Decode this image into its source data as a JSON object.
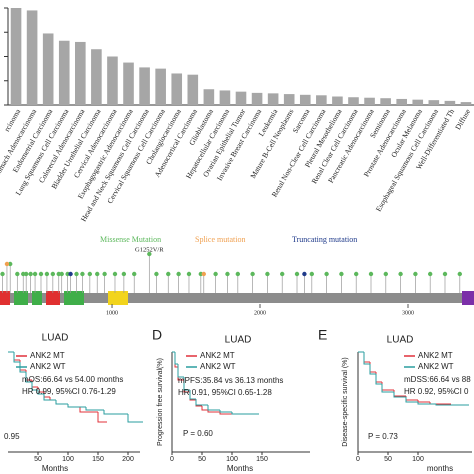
{
  "chart_data": [
    {
      "type": "bar",
      "color": "#a6a6a6",
      "categories": [
        "rcinoma",
        "Stomach Adenocarcinoma",
        "Endometrial Carcinoma",
        "Lung Squamous Cell Carcinoma",
        "Colorectal Adenocarcinoma",
        "Bladder Urothelial Carcinoma",
        "Cervical Adenocarcinoma",
        "Esophagogastric Adenocarcinoma",
        "Head and Neck Squamous Cell Carcinoma",
        "Cervical Squamous Cell Carcinoma",
        "Cholangiocarcinoma",
        "Adenocortical Carcinoma",
        "Glioblastoma",
        "Hepatocellular Carcinoma",
        "Ovarian Epithelial Tumor",
        "Invasive Breast Carcinoma",
        "Leukemia",
        "Mature B-Cell Neoplasms",
        "Sarcoma",
        "Renal Non-Clear Cell Carcinoma",
        "Pleural Mesothelioma",
        "Renal Clear Cell Carcinoma",
        "Pancreatic Adenocarcinoma",
        "Seminoma",
        "Prostate Adenocarcinoma",
        "Ocular Melanoma",
        "Esophageal Squamous Cell Carcinoma",
        "Well-Differentiated Th",
        "Diffuse"
      ],
      "values": [
        4.0,
        3.9,
        2.95,
        2.65,
        2.6,
        2.3,
        2.0,
        1.75,
        1.55,
        1.5,
        1.3,
        1.25,
        0.65,
        0.6,
        0.55,
        0.5,
        0.48,
        0.45,
        0.42,
        0.4,
        0.35,
        0.32,
        0.3,
        0.28,
        0.25,
        0.22,
        0.2,
        0.17,
        0.12
      ],
      "ylim": [
        0,
        4
      ],
      "yticks": [
        0,
        1,
        2,
        3,
        4
      ]
    },
    {
      "type": "lollipop",
      "annotation": "G1252V/R",
      "xlim": [
        243,
        3446
      ],
      "xticks": [
        1000,
        2000,
        3000
      ],
      "series": [
        {
          "name": "Missense Mutation",
          "color": "#5cb85c",
          "x": [
            260,
            312,
            360,
            400,
            420,
            450,
            480,
            520,
            560,
            600,
            640,
            660,
            700,
            760,
            800,
            850,
            900,
            950,
            1020,
            1080,
            1150,
            1252,
            1300,
            1380,
            1450,
            1520,
            1600,
            1700,
            1780,
            1850,
            1950,
            2050,
            2150,
            2250,
            2350,
            2450,
            2550,
            2650,
            2750,
            2850,
            2950,
            3050,
            3150,
            3250,
            3350
          ],
          "values": [
            1,
            2,
            1,
            1,
            1,
            1,
            1,
            1,
            1,
            1,
            1,
            1,
            1,
            1,
            1,
            1,
            1,
            1,
            1,
            1,
            1,
            3,
            1,
            1,
            1,
            1,
            1,
            1,
            1,
            1,
            1,
            1,
            1,
            1,
            1,
            1,
            1,
            1,
            1,
            1,
            1,
            1,
            1,
            1,
            1
          ]
        },
        {
          "name": "Splice mutation",
          "color": "#f0a050",
          "x": [
            290,
            1620
          ],
          "values": [
            2,
            1
          ]
        },
        {
          "name": "Truncating mutation",
          "color": "#1f3a8a",
          "x": [
            720,
            2300
          ],
          "values": [
            1,
            1
          ]
        }
      ]
    },
    {
      "type": "line",
      "step": true,
      "title": "LUAD",
      "xlabel": "Months",
      "annotations": [
        "mOS:66.64 vs 54.00 months",
        "HR 0.99, 95%CI 0.76-1.29",
        "0.95"
      ],
      "xlim": [
        0,
        220
      ],
      "ylim": [
        0,
        100
      ],
      "xticks": [
        50,
        100,
        150,
        200
      ],
      "series": [
        {
          "name": "ANK2 MT",
          "color": "#e0313a",
          "x": [
            0,
            10,
            20,
            30,
            40,
            50,
            60,
            70,
            80,
            100,
            120,
            150,
            160
          ],
          "values": [
            100,
            92,
            82,
            72,
            65,
            60,
            55,
            52,
            48,
            45,
            40,
            30,
            30
          ]
        },
        {
          "name": "ANK2 WT",
          "color": "#2a9d9f",
          "x": [
            0,
            10,
            20,
            30,
            40,
            50,
            60,
            80,
            100,
            130,
            160,
            200,
            220
          ],
          "values": [
            100,
            90,
            80,
            70,
            62,
            58,
            52,
            48,
            45,
            42,
            38,
            30,
            30
          ]
        }
      ]
    },
    {
      "type": "line",
      "step": true,
      "panel": "D",
      "title": "LUAD",
      "ylabel": "Progression free survival(%)",
      "xlabel": "Months",
      "annotations": [
        "mPFS:35.84 vs 36.13 months",
        "HR 0.91, 95%CI 0.65-1.28",
        "P = 0.60"
      ],
      "xlim": [
        0,
        230
      ],
      "ylim": [
        0,
        100
      ],
      "xticks": [
        0,
        50,
        100,
        150
      ],
      "series": [
        {
          "name": "ANK2 MT",
          "color": "#e0313a",
          "x": [
            0,
            5,
            10,
            20,
            30,
            40,
            50,
            60,
            80,
            100
          ],
          "values": [
            100,
            85,
            72,
            60,
            52,
            46,
            42,
            40,
            38,
            38
          ]
        },
        {
          "name": "ANK2 WT",
          "color": "#2a9d9f",
          "x": [
            0,
            5,
            10,
            20,
            30,
            40,
            60,
            80,
            100,
            140
          ],
          "values": [
            100,
            88,
            75,
            62,
            53,
            47,
            42,
            40,
            38,
            38
          ]
        }
      ]
    },
    {
      "type": "line",
      "step": true,
      "panel": "E",
      "title": "LUAD",
      "ylabel": "Disease-specific survival (%)",
      "xlabel": "months",
      "annotations": [
        "mDSS:66.64 vs 88",
        "HR 0.92, 95%CI 0",
        "P = 0.73"
      ],
      "xlim": [
        0,
        190
      ],
      "ylim": [
        0,
        100
      ],
      "xticks": [
        0,
        50,
        100
      ],
      "series": [
        {
          "name": "ANK2 MT",
          "color": "#e0313a",
          "x": [
            0,
            10,
            20,
            30,
            40,
            60,
            80,
            100,
            120,
            150
          ],
          "values": [
            100,
            90,
            80,
            70,
            62,
            56,
            52,
            50,
            48,
            48
          ]
        },
        {
          "name": "ANK2 WT",
          "color": "#2a9d9f",
          "x": [
            0,
            10,
            20,
            30,
            40,
            60,
            80,
            100,
            130,
            180
          ],
          "values": [
            100,
            88,
            78,
            68,
            60,
            55,
            50,
            48,
            47,
            47
          ]
        }
      ]
    }
  ]
}
